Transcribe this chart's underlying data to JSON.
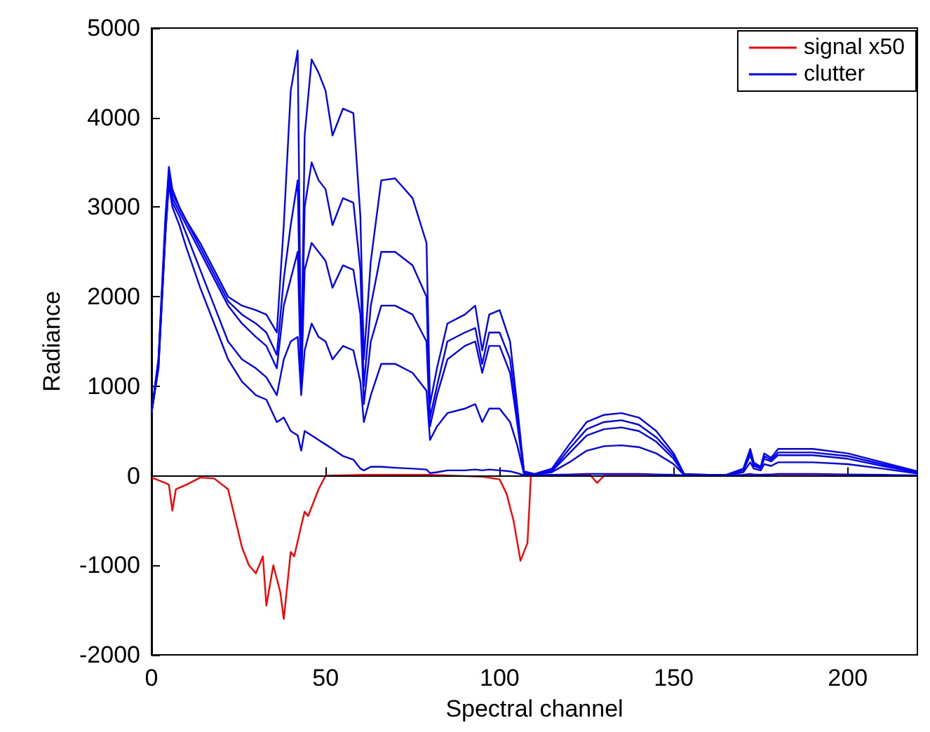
{
  "chart_data": {
    "type": "line",
    "xlabel": "Spectral channel",
    "ylabel": "Radiance",
    "xlim": [
      0,
      220
    ],
    "xticks": [
      0,
      50,
      100,
      150,
      200
    ],
    "ylim": [
      -2000,
      5000
    ],
    "yticks": [
      -2000,
      -1000,
      0,
      1000,
      2000,
      3000,
      4000,
      5000
    ],
    "grid": false,
    "legend": "top right",
    "marker": "none",
    "line_style": "solid",
    "ref_lines": [
      {
        "axis": "y",
        "value": 0,
        "color": "#000000"
      }
    ],
    "x": [
      0,
      2,
      4,
      5,
      6,
      8,
      10,
      14,
      18,
      22,
      26,
      30,
      33,
      36,
      38,
      40,
      42,
      43,
      44,
      46,
      48,
      50,
      52,
      55,
      58,
      60,
      61,
      63,
      66,
      70,
      75,
      79,
      80,
      82,
      85,
      90,
      93,
      95,
      97,
      100,
      103,
      105,
      107,
      110,
      115,
      120,
      125,
      130,
      135,
      140,
      145,
      150,
      153,
      160,
      165,
      170,
      172,
      173,
      175,
      176,
      178,
      180,
      190,
      200,
      210,
      220
    ],
    "series": [
      {
        "name": "signal x50",
        "color": "#ff0000",
        "x": [
          0,
          2,
          4,
          5,
          6,
          7,
          10,
          14,
          18,
          22,
          26,
          28,
          30,
          32,
          33,
          35,
          37,
          38,
          40,
          41,
          43,
          44,
          45,
          48,
          50,
          60,
          80,
          95,
          100,
          102,
          104,
          106,
          107,
          108,
          109,
          110,
          120,
          126,
          128,
          130,
          140,
          220
        ],
        "values": [
          -20,
          -50,
          -80,
          -100,
          -390,
          -150,
          -100,
          -20,
          -30,
          -150,
          -800,
          -1000,
          -1090,
          -900,
          -1450,
          -1000,
          -1300,
          -1600,
          -850,
          -900,
          -560,
          -400,
          -450,
          -150,
          0,
          10,
          10,
          -10,
          -40,
          -200,
          -500,
          -950,
          -850,
          -750,
          0,
          0,
          0,
          10,
          -80,
          0,
          0,
          0
        ]
      },
      {
        "name": "clutter",
        "color": "#0000ff",
        "values": [
          700,
          1300,
          2900,
          3450,
          3200,
          3000,
          2850,
          2600,
          2300,
          2000,
          1900,
          1850,
          1800,
          1600,
          2800,
          4300,
          4750,
          1100,
          3800,
          4650,
          4500,
          4300,
          3800,
          4100,
          4050,
          2900,
          1300,
          2400,
          3300,
          3320,
          3100,
          2600,
          800,
          1200,
          1700,
          1800,
          1900,
          1400,
          1800,
          1850,
          1500,
          800,
          50,
          20,
          80,
          350,
          600,
          680,
          700,
          650,
          500,
          250,
          20,
          10,
          10,
          80,
          300,
          150,
          100,
          250,
          200,
          300,
          300,
          250,
          150,
          50
        ]
      },
      {
        "color": "#0000ff",
        "values": [
          700,
          1300,
          2800,
          3400,
          3150,
          3000,
          2850,
          2550,
          2250,
          1950,
          1800,
          1700,
          1600,
          1350,
          2200,
          2800,
          3300,
          1050,
          3000,
          3500,
          3300,
          3200,
          2800,
          3100,
          3050,
          2300,
          1000,
          1900,
          2500,
          2500,
          2350,
          2000,
          650,
          1000,
          1500,
          1600,
          1650,
          1250,
          1600,
          1600,
          1300,
          700,
          40,
          15,
          60,
          300,
          520,
          600,
          620,
          570,
          430,
          220,
          15,
          10,
          10,
          70,
          260,
          130,
          90,
          220,
          180,
          260,
          260,
          220,
          130,
          40
        ]
      },
      {
        "color": "#0000ff",
        "values": [
          700,
          1250,
          2750,
          3350,
          3100,
          2950,
          2800,
          2500,
          2200,
          1900,
          1700,
          1550,
          1450,
          1200,
          1900,
          2200,
          2500,
          1000,
          2300,
          2600,
          2500,
          2400,
          2100,
          2350,
          2300,
          1800,
          800,
          1500,
          1900,
          1900,
          1800,
          1500,
          550,
          900,
          1300,
          1450,
          1500,
          1150,
          1450,
          1450,
          1150,
          600,
          30,
          10,
          50,
          250,
          450,
          520,
          540,
          500,
          380,
          190,
          10,
          8,
          8,
          60,
          230,
          110,
          80,
          190,
          160,
          230,
          230,
          190,
          110,
          35
        ]
      },
      {
        "color": "#0000ff",
        "values": [
          700,
          1200,
          2700,
          3300,
          3050,
          2900,
          2700,
          2300,
          1900,
          1500,
          1300,
          1200,
          1100,
          900,
          1300,
          1500,
          1550,
          900,
          1400,
          1700,
          1550,
          1500,
          1300,
          1450,
          1400,
          1050,
          600,
          900,
          1250,
          1250,
          1150,
          950,
          400,
          550,
          700,
          750,
          800,
          600,
          750,
          750,
          600,
          350,
          20,
          10,
          40,
          150,
          280,
          330,
          340,
          320,
          250,
          130,
          8,
          5,
          5,
          40,
          150,
          80,
          60,
          130,
          110,
          150,
          150,
          130,
          80,
          25
        ]
      },
      {
        "color": "#0000ff",
        "values": [
          700,
          1200,
          2700,
          3250,
          3000,
          2800,
          2550,
          2100,
          1700,
          1300,
          1050,
          900,
          850,
          600,
          650,
          500,
          450,
          280,
          500,
          450,
          400,
          350,
          300,
          220,
          180,
          80,
          60,
          100,
          100,
          90,
          80,
          70,
          30,
          40,
          60,
          60,
          70,
          60,
          70,
          60,
          50,
          30,
          5,
          5,
          10,
          15,
          20,
          20,
          20,
          20,
          15,
          10,
          5,
          5,
          5,
          10,
          20,
          15,
          10,
          15,
          15,
          20,
          20,
          15,
          10,
          5
        ]
      }
    ]
  }
}
